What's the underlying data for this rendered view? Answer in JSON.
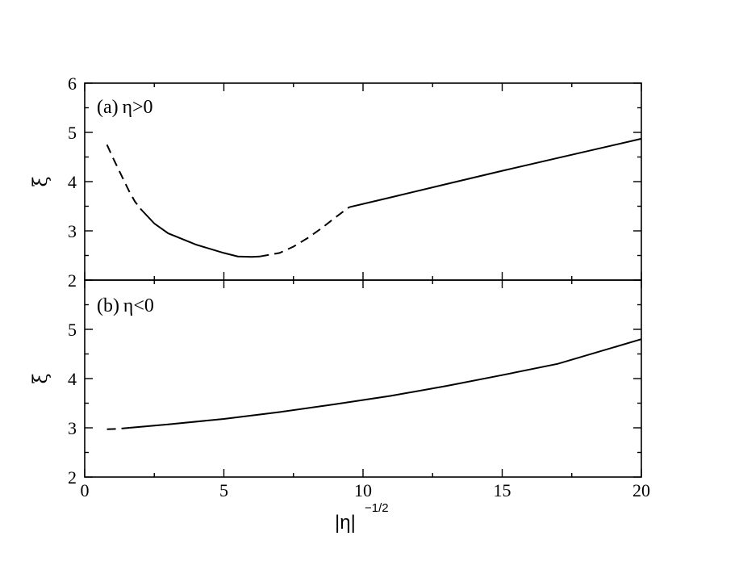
{
  "chart_data": [
    {
      "type": "line",
      "panel_label": "(a) η>0",
      "ylabel": "ξ",
      "xlabel": "",
      "xlim": [
        0,
        20
      ],
      "ylim": [
        2,
        6
      ],
      "yticks": [
        "2",
        "3",
        "4",
        "5",
        "6"
      ],
      "series": [
        {
          "style": "dashed",
          "x": [
            0.8,
            1.0,
            1.3,
            1.6,
            1.8,
            2.0
          ],
          "y": [
            4.75,
            4.5,
            4.15,
            3.8,
            3.6,
            3.45
          ]
        },
        {
          "style": "solid",
          "x": [
            2.0,
            2.5,
            3.0,
            4.0,
            5.0,
            5.5,
            6.0,
            6.3
          ],
          "y": [
            3.45,
            3.15,
            2.95,
            2.72,
            2.55,
            2.48,
            2.47,
            2.48
          ]
        },
        {
          "style": "dashed",
          "x": [
            6.3,
            7.0,
            7.5,
            8.0,
            8.5,
            9.0,
            9.5
          ],
          "y": [
            2.48,
            2.55,
            2.68,
            2.85,
            3.05,
            3.27,
            3.48
          ]
        },
        {
          "style": "solid",
          "x": [
            9.5,
            11.0,
            13.0,
            15.0,
            17.0,
            20.0
          ],
          "y": [
            3.48,
            3.68,
            3.95,
            4.22,
            4.48,
            4.87
          ]
        }
      ]
    },
    {
      "type": "line",
      "panel_label": "(b) η<0",
      "ylabel": "ξ",
      "xlabel": "|η|",
      "xlabel_sup": "−1/2",
      "xlim": [
        0,
        20
      ],
      "ylim": [
        2,
        6
      ],
      "xticks": [
        "0",
        "5",
        "10",
        "15",
        "20"
      ],
      "yticks": [
        "2",
        "3",
        "4",
        "5"
      ],
      "series": [
        {
          "style": "dashed",
          "x": [
            0.8,
            1.2,
            1.6
          ],
          "y": [
            2.97,
            2.98,
            3.0
          ]
        },
        {
          "style": "solid",
          "x": [
            1.6,
            3.0,
            5.0,
            7.0,
            9.0,
            11.0,
            13.0,
            15.0,
            17.0,
            20.0
          ],
          "y": [
            3.0,
            3.07,
            3.18,
            3.32,
            3.48,
            3.65,
            3.85,
            4.07,
            4.3,
            4.8
          ]
        }
      ]
    }
  ]
}
